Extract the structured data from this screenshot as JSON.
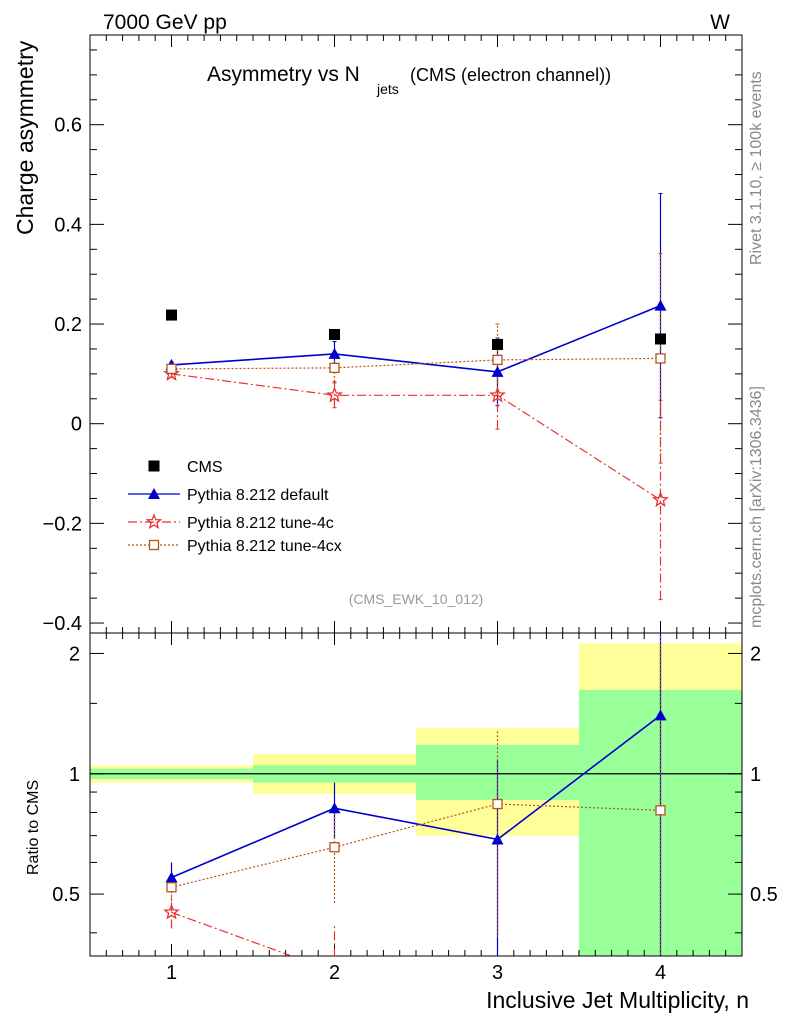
{
  "header": {
    "left": "7000 GeV pp",
    "right": "W"
  },
  "side_labels": {
    "rivet": "Rivet 3.1.10, ≥ 100k events",
    "mcplots": "mcplots.cern.ch [arXiv:1306.3436]"
  },
  "colors": {
    "cms": "#000000",
    "default": "#0000cc",
    "tune4c": "#e8322f",
    "tune4cx": "#b5531a",
    "band_inner": "#99ff99",
    "band_outer": "#ffff99"
  },
  "chart_data": [
    {
      "type": "scatter",
      "title_main": "Asymmetry vs N",
      "title_sub": "jets",
      "title_tail": "(CMS (electron channel))",
      "ylabel": "Charge asymmetry",
      "analysis_id": "(CMS_EWK_10_012)",
      "xlim": [
        0.5,
        4.5
      ],
      "ylim": [
        -0.42,
        0.78
      ],
      "yticks": [
        -0.4,
        -0.2,
        0,
        0.2,
        0.4,
        0.6
      ],
      "ytick_labels": [
        "−0.4",
        "−0.2",
        "0",
        "0.2",
        "0.4",
        "0.6"
      ],
      "x": [
        1,
        2,
        3,
        4
      ],
      "legend": [
        "CMS",
        "Pythia 8.212 default",
        "Pythia 8.212 tune-4c",
        "Pythia 8.212 tune-4cx"
      ],
      "series": [
        {
          "name": "CMS",
          "values": [
            0.218,
            0.179,
            0.159,
            0.17
          ]
        },
        {
          "name": "Pythia 8.212 default",
          "values": [
            0.118,
            0.14,
            0.104,
            0.237
          ],
          "err": [
            0.006,
            0.025,
            0.068,
            0.225
          ]
        },
        {
          "name": "Pythia 8.212 tune-4c",
          "values": [
            0.1,
            0.057,
            0.057,
            -0.153
          ],
          "err": [
            0.006,
            0.025,
            0.068,
            0.2
          ]
        },
        {
          "name": "Pythia 8.212 tune-4cx",
          "values": [
            0.11,
            0.112,
            0.128,
            0.131
          ],
          "err": [
            0.006,
            0.028,
            0.072,
            0.21
          ]
        }
      ]
    },
    {
      "type": "line",
      "ylabel": "Ratio to CMS",
      "xlabel": "Inclusive Jet Multiplicity, n",
      "xlim": [
        0.5,
        4.5
      ],
      "ylim": [
        0.35,
        2.25
      ],
      "log_scale": true,
      "xticks": [
        1,
        2,
        3,
        4
      ],
      "xtick_labels": [
        "1",
        "2",
        "3",
        "4"
      ],
      "yticks": [
        0.5,
        1,
        2
      ],
      "ytick_labels": [
        "0.5",
        "1",
        "2"
      ],
      "bands": [
        {
          "xlo": 0.5,
          "xhi": 1.5,
          "inner": [
            0.97,
            1.03
          ],
          "outer": [
            0.95,
            1.05
          ]
        },
        {
          "xlo": 1.5,
          "xhi": 2.5,
          "inner": [
            0.95,
            1.05
          ],
          "outer": [
            0.89,
            1.12
          ]
        },
        {
          "xlo": 2.5,
          "xhi": 3.5,
          "inner": [
            0.86,
            1.18
          ],
          "outer": [
            0.7,
            1.3
          ]
        },
        {
          "xlo": 3.5,
          "xhi": 4.5,
          "inner": [
            0.35,
            1.62
          ],
          "outer": [
            0.35,
            2.12
          ]
        }
      ],
      "series": [
        {
          "name": "Pythia 8.212 default",
          "values": [
            0.55,
            0.82,
            0.685,
            1.4
          ],
          "err_lo": [
            0.03,
            0.13,
            0.4,
            1.1
          ],
          "err_hi": [
            0.05,
            0.13,
            0.4,
            1.1
          ]
        },
        {
          "name": "Pythia 8.212 tune-4c",
          "values": [
            0.45,
            0.32,
            null,
            null
          ],
          "err_lo": [
            0.04,
            0.1,
            0,
            0
          ],
          "err_hi": [
            0.05,
            0.1,
            0,
            0
          ]
        },
        {
          "name": "Pythia 8.212 tune-4cx",
          "values": [
            0.52,
            0.655,
            0.84,
            0.81
          ],
          "err_lo": [
            0.04,
            0.18,
            0.45,
            0.8
          ],
          "err_hi": [
            0.04,
            0.18,
            0.45,
            1.4
          ]
        }
      ]
    }
  ]
}
